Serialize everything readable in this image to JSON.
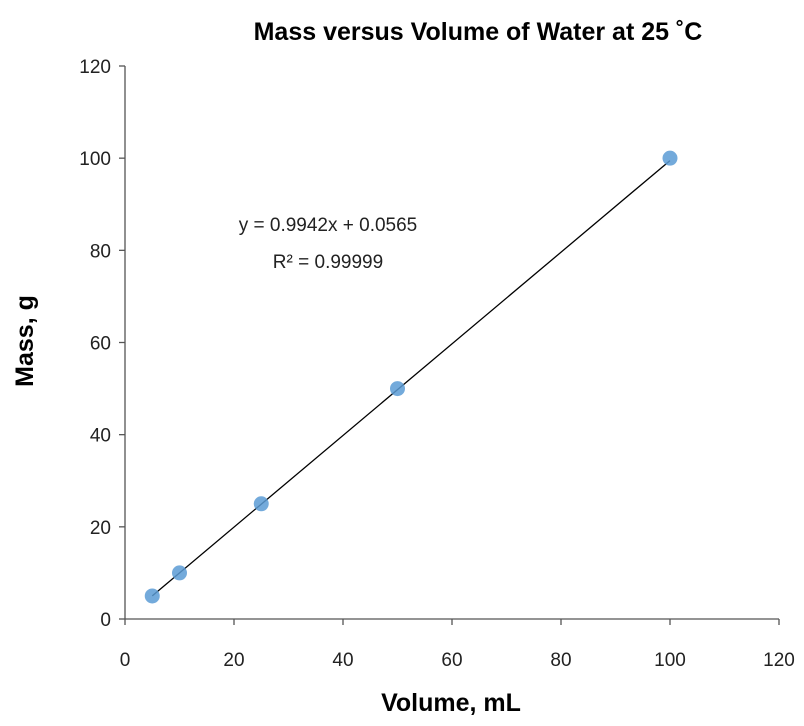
{
  "chart_data": {
    "type": "scatter",
    "title": "Mass versus Volume of Water at 25 ˚C",
    "xlabel": "Volume, mL",
    "ylabel": "Mass, g",
    "xlim": [
      0,
      120
    ],
    "ylim": [
      0,
      120
    ],
    "xticks": [
      "0",
      "20",
      "40",
      "60",
      "80",
      "100",
      "120"
    ],
    "yticks": [
      "0",
      "20",
      "40",
      "60",
      "80",
      "100",
      "120"
    ],
    "grid": false,
    "series": [
      {
        "x": [
          5,
          10,
          25,
          50,
          100
        ],
        "y": [
          5,
          10,
          25,
          50,
          100
        ],
        "color": "#5b9bd5"
      }
    ],
    "trendline": {
      "slope": 0.9942,
      "intercept": 0.0565,
      "x_range": [
        5,
        100
      ],
      "color": "#000000"
    },
    "annotations": [
      "y = 0.9942x + 0.0565",
      "R² = 0.99999"
    ]
  }
}
